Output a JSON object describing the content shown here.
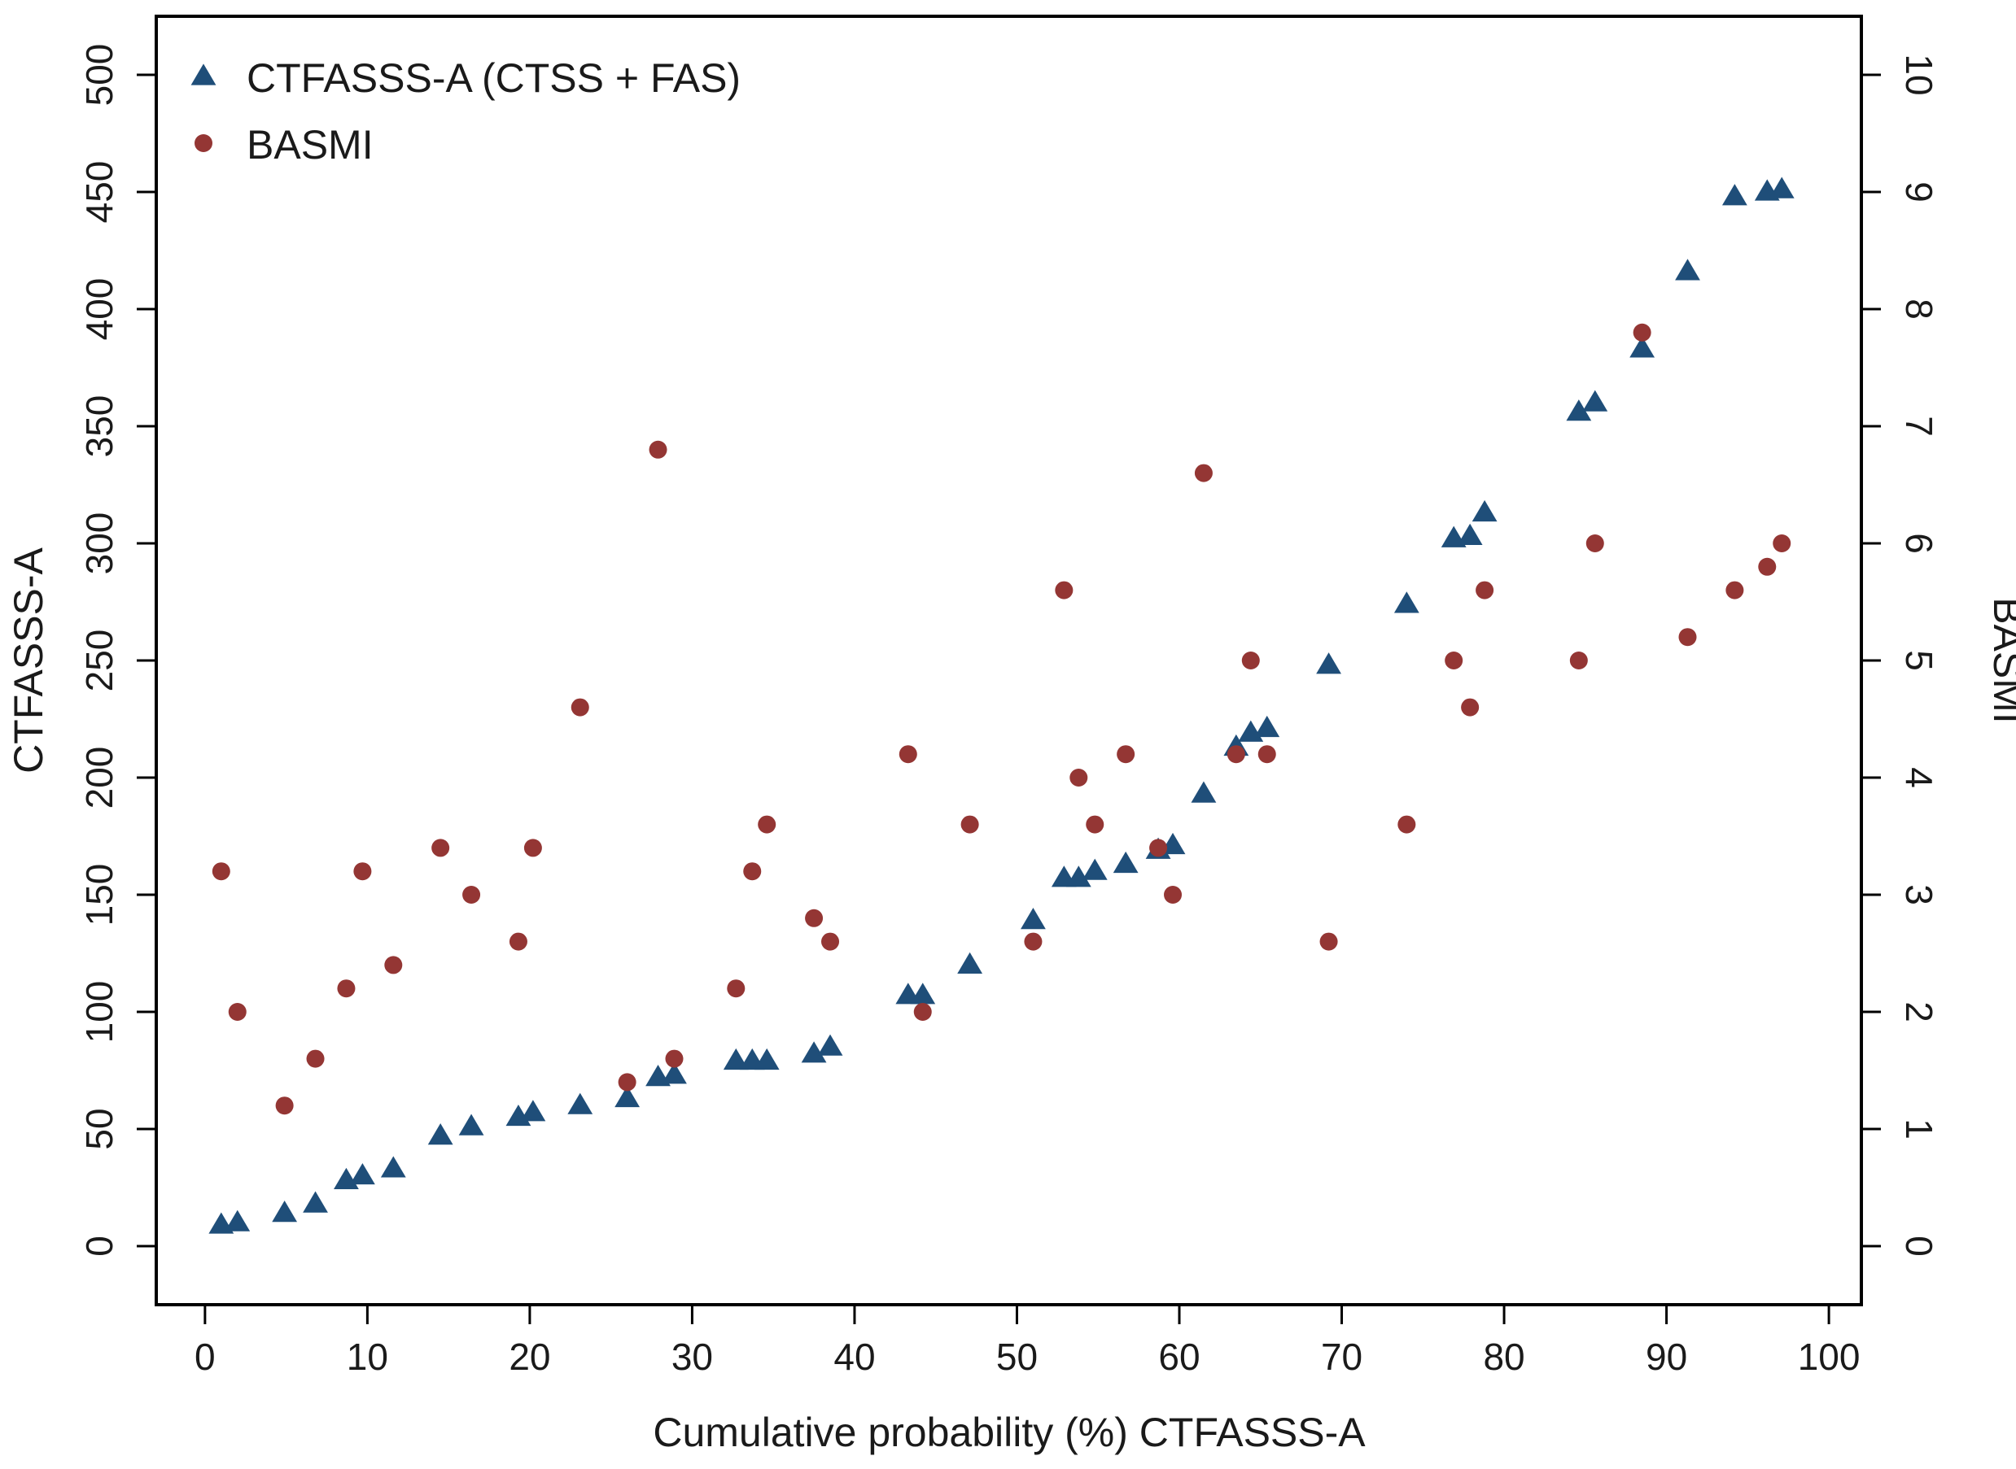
{
  "chart_data": {
    "type": "scatter",
    "title": "",
    "xlabel": "Cumulative probability (%) CTFASSS-A",
    "ylabel_left": "CTFASSS-A",
    "ylabel_right": "BASMI",
    "xlim": [
      -3,
      102
    ],
    "ylim_left": [
      -25,
      525
    ],
    "ylim_right": [
      -0.5,
      10.5
    ],
    "xticks": [
      0,
      10,
      20,
      30,
      40,
      50,
      60,
      70,
      80,
      90,
      100
    ],
    "yticks_left": [
      0,
      50,
      100,
      150,
      200,
      250,
      300,
      350,
      400,
      450,
      500
    ],
    "yticks_right": [
      0,
      1,
      2,
      3,
      4,
      5,
      6,
      7,
      8,
      9,
      10
    ],
    "grid": false,
    "legend_position": "top-left",
    "series": [
      {
        "name": "CTFASSS-A (CTSS + FAS)",
        "axis": "left",
        "marker": "triangle",
        "color": "#1f4e79",
        "points": [
          [
            1,
            9
          ],
          [
            2,
            10
          ],
          [
            4.9,
            14
          ],
          [
            6.8,
            18
          ],
          [
            8.7,
            28
          ],
          [
            9.7,
            30
          ],
          [
            11.6,
            33
          ],
          [
            14.5,
            47
          ],
          [
            16.4,
            51
          ],
          [
            19.3,
            55
          ],
          [
            20.2,
            57
          ],
          [
            23.1,
            60
          ],
          [
            26,
            63
          ],
          [
            27.9,
            72
          ],
          [
            28.9,
            73
          ],
          [
            32.7,
            79
          ],
          [
            33.7,
            79
          ],
          [
            34.6,
            79
          ],
          [
            37.5,
            82
          ],
          [
            38.5,
            85
          ],
          [
            43.3,
            107
          ],
          [
            44.2,
            107
          ],
          [
            47.1,
            120
          ],
          [
            51,
            139
          ],
          [
            52.9,
            157
          ],
          [
            53.8,
            157
          ],
          [
            54.8,
            160
          ],
          [
            56.7,
            163
          ],
          [
            58.7,
            169
          ],
          [
            59.6,
            171
          ],
          [
            61.5,
            193
          ],
          [
            63.5,
            213
          ],
          [
            64.4,
            219
          ],
          [
            65.4,
            221
          ],
          [
            69.2,
            248
          ],
          [
            74,
            274
          ],
          [
            76.9,
            302
          ],
          [
            77.9,
            303
          ],
          [
            78.8,
            313
          ],
          [
            84.6,
            356
          ],
          [
            85.6,
            360
          ],
          [
            88.5,
            383
          ],
          [
            91.3,
            416
          ],
          [
            94.2,
            448
          ],
          [
            96.2,
            450
          ],
          [
            97.1,
            451
          ]
        ]
      },
      {
        "name": "BASMI",
        "axis": "right",
        "marker": "circle",
        "color": "#943634",
        "points": [
          [
            1,
            3.2
          ],
          [
            2,
            2
          ],
          [
            4.9,
            1.2
          ],
          [
            6.8,
            1.6
          ],
          [
            8.7,
            2.2
          ],
          [
            9.7,
            3.2
          ],
          [
            11.6,
            2.4
          ],
          [
            14.5,
            3.4
          ],
          [
            16.4,
            3
          ],
          [
            19.3,
            2.6
          ],
          [
            20.2,
            3.4
          ],
          [
            23.1,
            4.6
          ],
          [
            26,
            1.4
          ],
          [
            27.9,
            6.8
          ],
          [
            28.9,
            1.6
          ],
          [
            32.7,
            2.2
          ],
          [
            33.7,
            3.2
          ],
          [
            34.6,
            3.6
          ],
          [
            37.5,
            2.8
          ],
          [
            38.5,
            2.6
          ],
          [
            43.3,
            4.2
          ],
          [
            44.2,
            2
          ],
          [
            47.1,
            3.6
          ],
          [
            51,
            2.6
          ],
          [
            52.9,
            5.6
          ],
          [
            53.8,
            4
          ],
          [
            54.8,
            3.6
          ],
          [
            56.7,
            4.2
          ],
          [
            58.7,
            3.4
          ],
          [
            59.6,
            3
          ],
          [
            61.5,
            6.6
          ],
          [
            63.5,
            4.2
          ],
          [
            64.4,
            5
          ],
          [
            65.4,
            4.2
          ],
          [
            69.2,
            2.6
          ],
          [
            74,
            3.6
          ],
          [
            76.9,
            5
          ],
          [
            77.9,
            4.6
          ],
          [
            78.8,
            5.6
          ],
          [
            84.6,
            5
          ],
          [
            85.6,
            6
          ],
          [
            88.5,
            7.8
          ],
          [
            91.3,
            5.2
          ],
          [
            94.2,
            5.6
          ],
          [
            96.2,
            5.8
          ],
          [
            97.1,
            6
          ]
        ]
      }
    ]
  }
}
